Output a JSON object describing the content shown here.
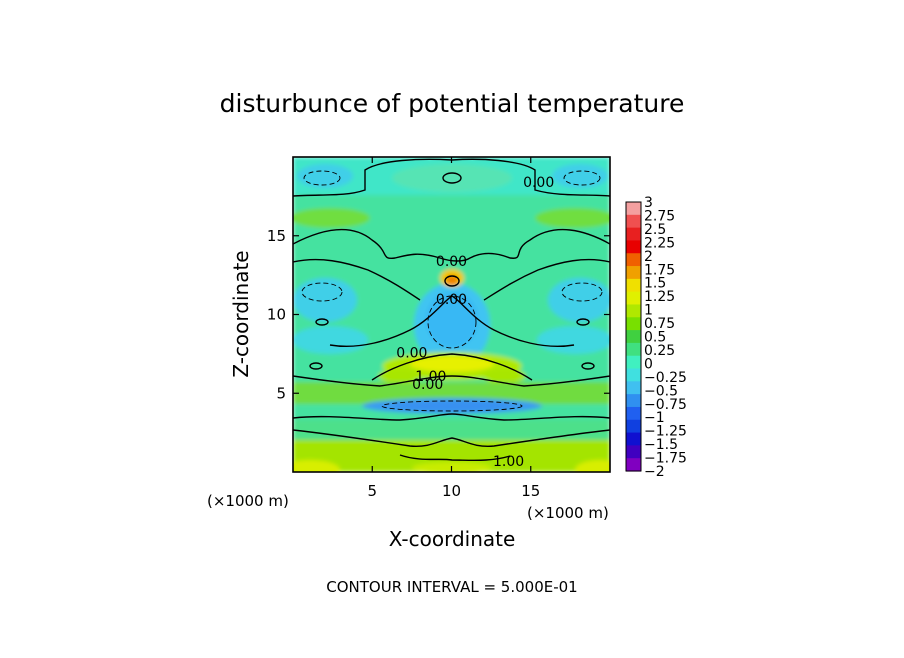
{
  "chart_data": {
    "type": "heatmap",
    "title": "disturbunce of potential temperature",
    "xlabel": "X-coordinate",
    "ylabel": "Z-coordinate",
    "x_unit_left": "(×1000 m)",
    "x_unit_right": "(×1000 m)",
    "xlim": [
      0,
      20
    ],
    "ylim": [
      0,
      20
    ],
    "x_ticks": [
      5,
      10,
      15
    ],
    "y_ticks": [
      5,
      10,
      15
    ],
    "x_tick_labels": [
      "5",
      "10",
      "15"
    ],
    "y_tick_labels": [
      "5",
      "10",
      "15"
    ],
    "footer": "CONTOUR INTERVAL = 5.000E-01",
    "colorbar": {
      "min": -2,
      "max": 3,
      "labels": [
        "3",
        "2.75",
        "2.5",
        "2.25",
        "2",
        "1.75",
        "1.5",
        "1.25",
        "1",
        "0.75",
        "0.5",
        "0.25",
        "0",
        "−0.25",
        "−0.5",
        "−0.75",
        "−1",
        "−1.25",
        "−1.5",
        "−1.75",
        "−2"
      ],
      "colors": [
        "#f4a0a0",
        "#f05050",
        "#e82020",
        "#e80000",
        "#f06000",
        "#f0a000",
        "#f0e000",
        "#e0f000",
        "#b0e800",
        "#78e000",
        "#40d040",
        "#40e080",
        "#40f0c0",
        "#40e0e0",
        "#40c0f0",
        "#3090f0",
        "#2060f0",
        "#1040e0",
        "#1010d0",
        "#4000c0",
        "#8000c0"
      ]
    },
    "contour_labels": [
      {
        "text": "0.00",
        "x": 15.5,
        "y": 18.4
      },
      {
        "text": "0.00",
        "x": 10.0,
        "y": 13.4
      },
      {
        "text": "0.00",
        "x": 10.0,
        "y": 11.0
      },
      {
        "text": "0.00",
        "x": 7.5,
        "y": 7.6
      },
      {
        "text": "1.00",
        "x": 8.7,
        "y": 6.1
      },
      {
        "text": "0.00",
        "x": 8.5,
        "y": 5.6
      },
      {
        "text": "1.00",
        "x": 13.6,
        "y": 0.7
      }
    ]
  }
}
